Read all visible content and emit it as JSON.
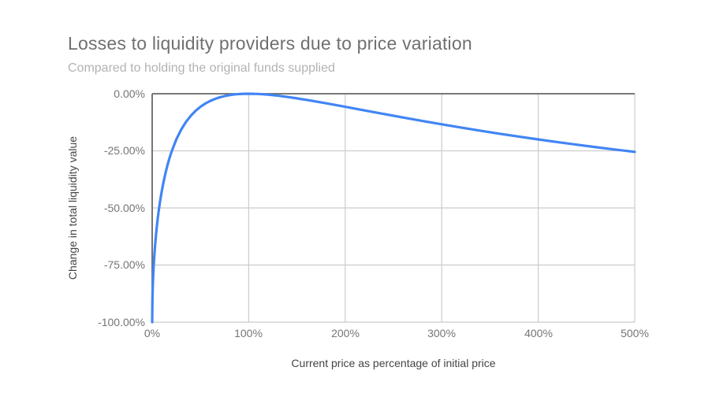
{
  "chart_data": {
    "type": "line",
    "title": "Losses to liquidity providers due to price variation",
    "subtitle": "Compared to holding the original funds supplied",
    "xlabel": "Current price as percentage of initial price",
    "ylabel": "Change in total liquidity value",
    "x_ticks": [
      "0%",
      "100%",
      "200%",
      "300%",
      "400%",
      "500%"
    ],
    "y_ticks": [
      "0.00%",
      "-25.00%",
      "-50.00%",
      "-75.00%",
      "-100.00%"
    ],
    "xlim": [
      0,
      500
    ],
    "ylim": [
      -100,
      0
    ],
    "grid": true,
    "legend": false,
    "colors": {
      "line": "#4285f4",
      "grid": "#cccccc",
      "baseline": "#666666",
      "title": "#707070",
      "subtitle": "#b3b3b3",
      "tick": "#757575",
      "axis_title": "#454545",
      "background": "#ffffff"
    },
    "series": [
      {
        "name": "Change in total liquidity value",
        "color": "#4285f4",
        "points": [
          [
            0,
            -100
          ],
          [
            0.25,
            -90.02
          ],
          [
            0.5,
            -85.93
          ],
          [
            1,
            -80.2
          ],
          [
            1.5,
            -75.87
          ],
          [
            2,
            -72.27
          ],
          [
            3,
            -66.37
          ],
          [
            4,
            -61.54
          ],
          [
            5,
            -57.41
          ],
          [
            6,
            -53.78
          ],
          [
            7,
            -50.55
          ],
          [
            8,
            -47.62
          ],
          [
            9,
            -44.95
          ],
          [
            10,
            -42.5
          ],
          [
            12,
            -38.14
          ],
          [
            14,
            -34.36
          ],
          [
            16,
            -31.03
          ],
          [
            18,
            -28.09
          ],
          [
            20,
            -25.46
          ],
          [
            25,
            -20.0
          ],
          [
            30,
            -15.73
          ],
          [
            35,
            -12.35
          ],
          [
            40,
            -9.65
          ],
          [
            45,
            -7.47
          ],
          [
            50,
            -5.72
          ],
          [
            55,
            -4.31
          ],
          [
            60,
            -3.18
          ],
          [
            65,
            -2.28
          ],
          [
            70,
            -1.57
          ],
          [
            75,
            -1.03
          ],
          [
            80,
            -0.62
          ],
          [
            85,
            -0.33
          ],
          [
            90,
            -0.14
          ],
          [
            95,
            -0.03
          ],
          [
            100,
            0
          ],
          [
            110,
            -0.11
          ],
          [
            120,
            -0.41
          ],
          [
            130,
            -0.85
          ],
          [
            140,
            -1.4
          ],
          [
            150,
            -2.02
          ],
          [
            160,
            -2.7
          ],
          [
            170,
            -3.42
          ],
          [
            180,
            -4.17
          ],
          [
            190,
            -4.94
          ],
          [
            200,
            -5.72
          ],
          [
            220,
            -7.3
          ],
          [
            240,
            -8.87
          ],
          [
            260,
            -10.42
          ],
          [
            280,
            -11.93
          ],
          [
            300,
            -13.4
          ],
          [
            320,
            -14.82
          ],
          [
            340,
            -16.19
          ],
          [
            360,
            -17.51
          ],
          [
            380,
            -18.78
          ],
          [
            400,
            -20.0
          ],
          [
            420,
            -21.18
          ],
          [
            440,
            -22.31
          ],
          [
            460,
            -23.4
          ],
          [
            480,
            -24.45
          ],
          [
            500,
            -25.46
          ]
        ]
      }
    ]
  }
}
